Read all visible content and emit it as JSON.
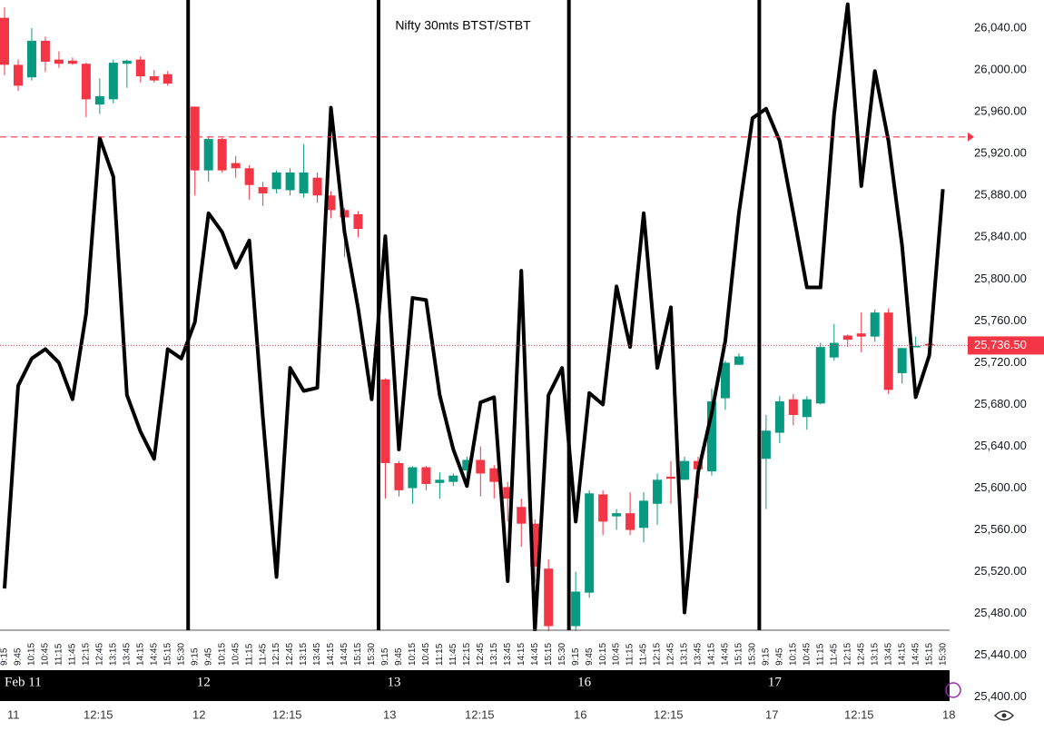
{
  "chart_data": {
    "type": "candlestick",
    "title": "Nifty 30mts BTST/STBT",
    "categories": [
      "9:15",
      "9:45",
      "10:15",
      "10:45",
      "11:15",
      "11:45",
      "12:15",
      "12:45",
      "13:15",
      "13:45",
      "14:15",
      "14:45",
      "15:15",
      "15:30",
      "9:15",
      "9:45",
      "10:15",
      "10:45",
      "11:15",
      "11:45",
      "12:15",
      "12:45",
      "13:15",
      "13:45",
      "14:15",
      "14:45",
      "15:15",
      "15:30",
      "9:15",
      "9:45",
      "10:15",
      "10:45",
      "11:15",
      "11:45",
      "12:15",
      "12:45",
      "13:15",
      "13:45",
      "14:15",
      "14:45",
      "15:15",
      "15:30",
      "9:15",
      "9:45",
      "10:15",
      "10:45",
      "11:15",
      "11:45",
      "12:15",
      "12:45",
      "13:15",
      "13:45",
      "14:15",
      "14:45",
      "15:15",
      "15:30",
      "9:15",
      "9:45",
      "10:15",
      "10:45",
      "11:15",
      "11:45",
      "12:15",
      "12:45",
      "13:15",
      "13:45",
      "14:15",
      "14:45",
      "15:15",
      "15:30"
    ],
    "day_labels": [
      "Feb 11",
      "12",
      "13",
      "16",
      "17"
    ],
    "bottom_labels": [
      "11",
      "12:15",
      "12",
      "12:15",
      "13",
      "12:15",
      "16",
      "12:15",
      "17",
      "12:15",
      "18"
    ],
    "up_color": "#089981",
    "down_color": "#f23645",
    "open": [
      26050,
      26005,
      25993,
      26028,
      26010,
      26009,
      26006,
      25967,
      25972,
      26006,
      26010,
      25994,
      25996,
      null,
      25965,
      25904,
      25934,
      25911,
      25906,
      25888,
      25886,
      25885,
      25882,
      25897,
      25880,
      25866,
      25862,
      null,
      25704,
      25624,
      25600,
      25620,
      25605,
      25606,
      25617,
      25627,
      25619,
      25601,
      25582,
      25566,
      25523,
      null,
      25468,
      25500,
      25594,
      25573,
      25576,
      25562,
      25585,
      25611,
      25608,
      25626,
      25616,
      25686,
      25718,
      null,
      25628,
      25653,
      25685,
      25668,
      25681,
      25725,
      25746,
      25748,
      25745,
      25768,
      25710,
      25735,
      25738,
      null
    ],
    "high": [
      26060,
      26010,
      26040,
      26032,
      26018,
      26012,
      26007,
      25992,
      26010,
      26010,
      26013,
      26000,
      25999,
      null,
      25965,
      25936,
      25935,
      25918,
      25909,
      25893,
      25904,
      25906,
      25929,
      25902,
      25884,
      25868,
      25865,
      null,
      25705,
      25626,
      25621,
      25621,
      25615,
      25614,
      25630,
      25640,
      25622,
      25606,
      25590,
      25570,
      25532,
      null,
      25520,
      25598,
      25598,
      25580,
      25596,
      25596,
      25614,
      25626,
      25630,
      25630,
      25695,
      25722,
      25729,
      null,
      25670,
      25688,
      25690,
      25688,
      25739,
      25757,
      25747,
      25768,
      25771,
      25772,
      25734,
      25745,
      25742,
      null
    ],
    "low": [
      25995,
      25980,
      25990,
      25998,
      26002,
      26005,
      25955,
      25958,
      25968,
      25983,
      25988,
      25988,
      25985,
      null,
      25880,
      25893,
      25902,
      25897,
      25876,
      25870,
      25882,
      25880,
      25878,
      25873,
      25858,
      25821,
      25840,
      null,
      25590,
      25592,
      25585,
      25598,
      25590,
      25602,
      25610,
      25592,
      25590,
      25568,
      25544,
      25510,
      25462,
      null,
      25448,
      25495,
      25555,
      25560,
      25555,
      25548,
      25565,
      25585,
      25608,
      25590,
      25612,
      25675,
      25718,
      null,
      25580,
      25643,
      25660,
      25656,
      25680,
      25722,
      25735,
      25730,
      25740,
      25690,
      25700,
      25735,
      25735,
      null
    ],
    "close": [
      26005,
      25985,
      26028,
      26008,
      26006,
      26006,
      25972,
      25975,
      26007,
      26009,
      25994,
      25990,
      25987,
      null,
      25904,
      25934,
      25904,
      25906,
      25890,
      25882,
      25902,
      25902,
      25902,
      25880,
      25866,
      25859,
      25848,
      null,
      25624,
      25598,
      25620,
      25604,
      25608,
      25612,
      25627,
      25614,
      25606,
      25590,
      25566,
      25525,
      25468,
      null,
      25501,
      25595,
      25568,
      25576,
      25560,
      25588,
      25608,
      25609,
      25626,
      25618,
      25683,
      25720,
      25726,
      null,
      25655,
      25683,
      25670,
      25685,
      25735,
      25739,
      25742,
      25745,
      25768,
      25694,
      25734,
      25736,
      25736.5,
      null
    ],
    "overlay": {
      "color": "#000000",
      "values": [
        25504,
        25698,
        25724,
        25733,
        25720,
        25685,
        25767,
        25935,
        25898,
        25689,
        25654,
        25628,
        25733,
        25724,
        25759,
        25863,
        25845,
        25811,
        25837,
        25667,
        25515,
        25715,
        25693,
        25696,
        25964,
        25845,
        25772,
        25685,
        25841,
        25637,
        25782,
        25780,
        25689,
        25637,
        25602,
        25682,
        25687,
        25511,
        25808,
        25463,
        25689,
        25715,
        25568,
        25691,
        25680,
        25793,
        25735,
        25863,
        25715,
        25773,
        25481,
        25615,
        25672,
        25741,
        25863,
        25954,
        25963,
        25932,
        25863,
        25792,
        25792,
        25958,
        26063,
        25889,
        25999,
        25932,
        25832,
        25687,
        25727,
        25886
      ]
    },
    "alert_line": {
      "value": 25936,
      "color": "#f23645"
    },
    "last_price": {
      "value": 25736.5,
      "label": "25,736.50",
      "color": "#f23645"
    },
    "ylim": [
      25372,
      26067
    ],
    "yticks": [
      {
        "value": 25400,
        "label": "25,400.00"
      },
      {
        "value": 25440,
        "label": "25,440.00"
      },
      {
        "value": 25480,
        "label": "25,480.00"
      },
      {
        "value": 25520,
        "label": "25,520.00"
      },
      {
        "value": 25560,
        "label": "25,560.00"
      },
      {
        "value": 25600,
        "label": "25,600.00"
      },
      {
        "value": 25640,
        "label": "25,640.00"
      },
      {
        "value": 25680,
        "label": "25,680.00"
      },
      {
        "value": 25720,
        "label": "25,720.00"
      },
      {
        "value": 25760,
        "label": "25,760.00"
      },
      {
        "value": 25800,
        "label": "25,800.00"
      },
      {
        "value": 25840,
        "label": "25,840.00"
      },
      {
        "value": 25880,
        "label": "25,880.00"
      },
      {
        "value": 25920,
        "label": "25,920.00"
      },
      {
        "value": 25960,
        "label": "25,960.00"
      },
      {
        "value": 26000,
        "label": "26,000.00"
      },
      {
        "value": 26040,
        "label": "26,040.00"
      }
    ]
  }
}
